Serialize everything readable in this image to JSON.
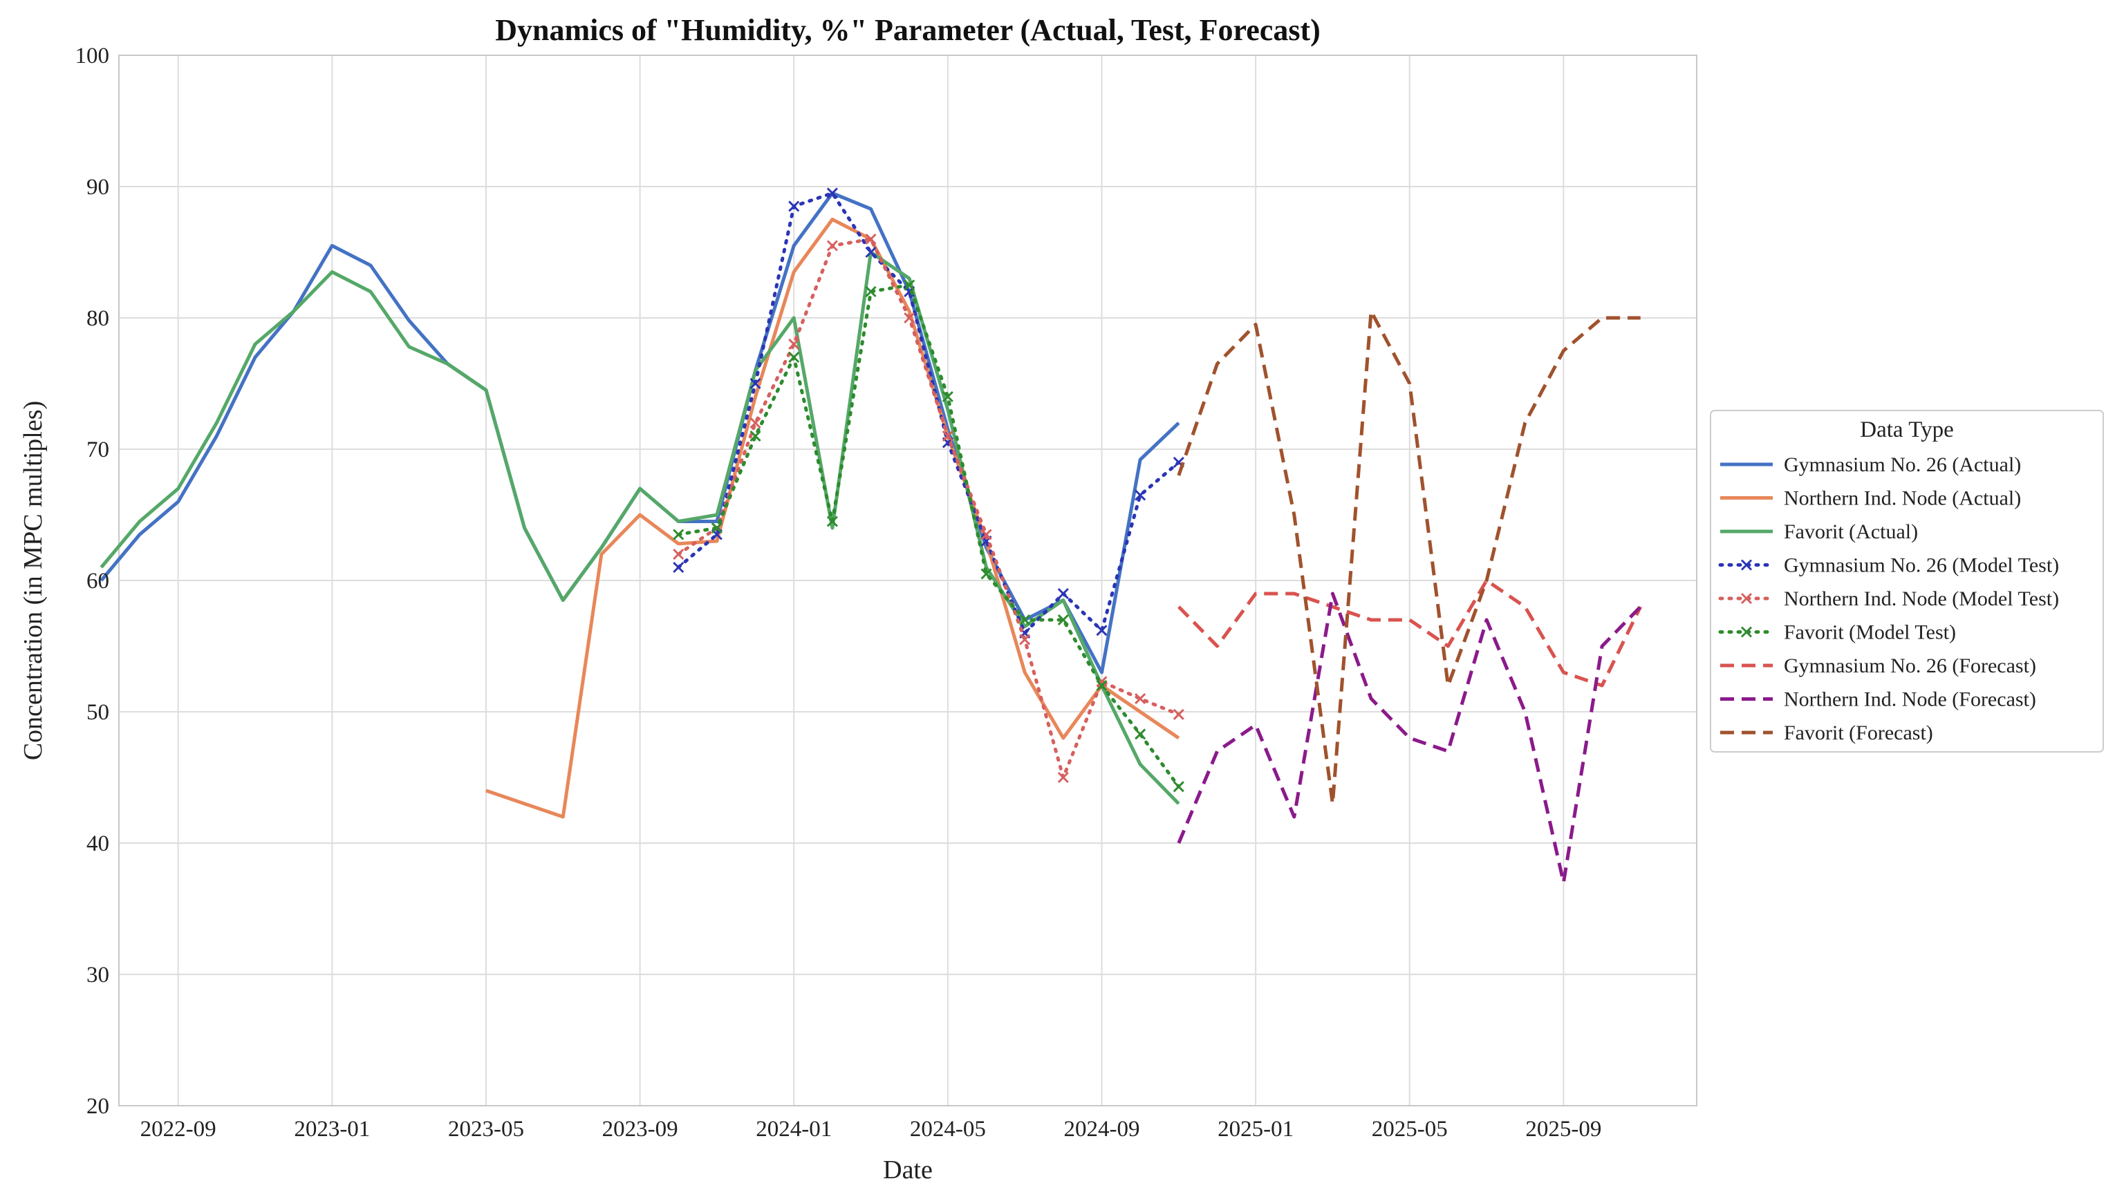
{
  "chart_data": {
    "type": "line",
    "title": "Dynamics of \"Humidity, %\" Parameter (Actual, Test, Forecast)",
    "xlabel": "Date",
    "ylabel": "Concentration (in MPC multiples)",
    "xlim": [
      "2022-07-15",
      "2025-12-15"
    ],
    "ylim": [
      20,
      100
    ],
    "yticks": [
      20,
      30,
      40,
      50,
      60,
      70,
      80,
      90,
      100
    ],
    "xticks": [
      "2022-09",
      "2023-01",
      "2023-05",
      "2023-09",
      "2024-01",
      "2024-05",
      "2024-09",
      "2025-01",
      "2025-05",
      "2025-09"
    ],
    "grid": true,
    "legend": {
      "title": "Data Type",
      "placement": "right"
    },
    "series": [
      {
        "name": "Gymnasium No. 26 (Actual)",
        "color": "#4472C4",
        "style": "solid",
        "x": [
          "2022-07",
          "2022-08",
          "2022-09",
          "2022-10",
          "2022-11",
          "2022-12",
          "2023-01",
          "2023-02",
          "2023-03",
          "2023-04",
          "2023-05",
          "2023-06",
          "2023-07",
          "2023-08",
          "2023-09",
          "2023-10",
          "2023-11",
          "2023-12",
          "2024-01",
          "2024-02",
          "2024-03",
          "2024-04",
          "2024-05",
          "2024-06",
          "2024-07",
          "2024-08",
          "2024-09",
          "2024-10",
          "2024-11"
        ],
        "y": [
          60,
          63.5,
          66,
          71,
          77,
          80.5,
          85.5,
          84,
          79.8,
          76.5,
          74.5,
          64,
          58.5,
          62.5,
          67,
          64.5,
          64.5,
          76,
          85.5,
          89.5,
          88.3,
          82,
          71.5,
          62.5,
          57,
          58.5,
          53,
          69.2,
          72
        ]
      },
      {
        "name": "Northern Ind. Node (Actual)",
        "color": "#E8875A",
        "style": "solid",
        "x": [
          "2023-05",
          "2023-06",
          "2023-07",
          "2023-08",
          "2023-09",
          "2023-10",
          "2023-11",
          "2023-12",
          "2024-01",
          "2024-02",
          "2024-03",
          "2024-04",
          "2024-05",
          "2024-06",
          "2024-07",
          "2024-08",
          "2024-09",
          "2024-10",
          "2024-11"
        ],
        "y": [
          44,
          43,
          42,
          62,
          65,
          62.8,
          63,
          74,
          83.5,
          87.5,
          86,
          80.5,
          71,
          63,
          53,
          48,
          52,
          50,
          48
        ]
      },
      {
        "name": "Favorit (Actual)",
        "color": "#55A868",
        "style": "solid",
        "x": [
          "2022-07",
          "2022-08",
          "2022-09",
          "2022-10",
          "2022-11",
          "2022-12",
          "2023-01",
          "2023-02",
          "2023-03",
          "2023-04",
          "2023-05",
          "2023-06",
          "2023-07",
          "2023-08",
          "2023-09",
          "2023-10",
          "2023-11",
          "2023-12",
          "2024-01",
          "2024-02",
          "2024-03",
          "2024-04",
          "2024-05",
          "2024-06",
          "2024-07",
          "2024-08",
          "2024-09",
          "2024-10",
          "2024-11"
        ],
        "y": [
          61,
          64.5,
          67,
          72,
          78,
          80.5,
          83.5,
          82,
          77.8,
          76.5,
          74.5,
          64,
          58.5,
          62.5,
          67,
          64.5,
          65,
          76,
          80,
          64,
          85,
          83,
          73,
          61,
          56.5,
          58.5,
          52,
          46,
          43
        ]
      },
      {
        "name": "Gymnasium No. 26 (Model Test)",
        "color": "#2B35B5",
        "style": "dotted",
        "marker": "x",
        "x": [
          "2023-10",
          "2023-11",
          "2023-12",
          "2024-01",
          "2024-02",
          "2024-03",
          "2024-04",
          "2024-05",
          "2024-06",
          "2024-07",
          "2024-08",
          "2024-09",
          "2024-10",
          "2024-11"
        ],
        "y": [
          61,
          63.5,
          75,
          88.5,
          89.5,
          85,
          82,
          70.5,
          63,
          56,
          59,
          56.2,
          66.5,
          69
        ]
      },
      {
        "name": "Northern Ind. Node (Model Test)",
        "color": "#D6605E",
        "style": "dotted",
        "marker": "x",
        "x": [
          "2023-10",
          "2023-11",
          "2023-12",
          "2024-01",
          "2024-02",
          "2024-03",
          "2024-04",
          "2024-05",
          "2024-06",
          "2024-07",
          "2024-08",
          "2024-09",
          "2024-10",
          "2024-11"
        ],
        "y": [
          62,
          64,
          72,
          78,
          85.5,
          86,
          80,
          71,
          63.5,
          55.5,
          45,
          52.3,
          51,
          49.8
        ]
      },
      {
        "name": "Favorit (Model Test)",
        "color": "#2E8B2E",
        "style": "dotted",
        "marker": "x",
        "x": [
          "2023-10",
          "2023-11",
          "2023-12",
          "2024-01",
          "2024-02",
          "2024-03",
          "2024-04",
          "2024-05",
          "2024-06",
          "2024-07",
          "2024-08",
          "2024-09",
          "2024-10",
          "2024-11"
        ],
        "y": [
          63.5,
          64,
          71,
          77,
          64.5,
          82,
          82.5,
          74,
          60.5,
          57,
          57,
          52,
          48.3,
          44.3
        ]
      },
      {
        "name": "Gymnasium No. 26 (Forecast)",
        "color": "#D9534F",
        "style": "dashed",
        "x": [
          "2024-11",
          "2024-12",
          "2025-01",
          "2025-02",
          "2025-03",
          "2025-04",
          "2025-05",
          "2025-06",
          "2025-07",
          "2025-08",
          "2025-09",
          "2025-10",
          "2025-11"
        ],
        "y": [
          58,
          55,
          59,
          59,
          58,
          57,
          57,
          55,
          60,
          58,
          53,
          52,
          58
        ]
      },
      {
        "name": "Northern Ind. Node (Forecast)",
        "color": "#8B1A8B",
        "style": "dashed",
        "x": [
          "2024-11",
          "2024-12",
          "2025-01",
          "2025-02",
          "2025-03",
          "2025-04",
          "2025-05",
          "2025-06",
          "2025-07",
          "2025-08",
          "2025-09",
          "2025-10",
          "2025-11"
        ],
        "y": [
          40,
          47,
          49,
          42,
          59,
          51,
          48,
          47,
          57,
          50,
          37,
          55,
          58
        ]
      },
      {
        "name": "Favorit (Forecast)",
        "color": "#A0522D",
        "style": "dashed",
        "x": [
          "2024-11",
          "2024-12",
          "2025-01",
          "2025-02",
          "2025-03",
          "2025-04",
          "2025-05",
          "2025-06",
          "2025-07",
          "2025-08",
          "2025-09",
          "2025-10",
          "2025-11"
        ],
        "y": [
          68,
          76.5,
          79.5,
          65,
          43,
          80.5,
          75,
          52,
          60,
          72,
          77.5,
          80,
          80
        ]
      }
    ]
  }
}
